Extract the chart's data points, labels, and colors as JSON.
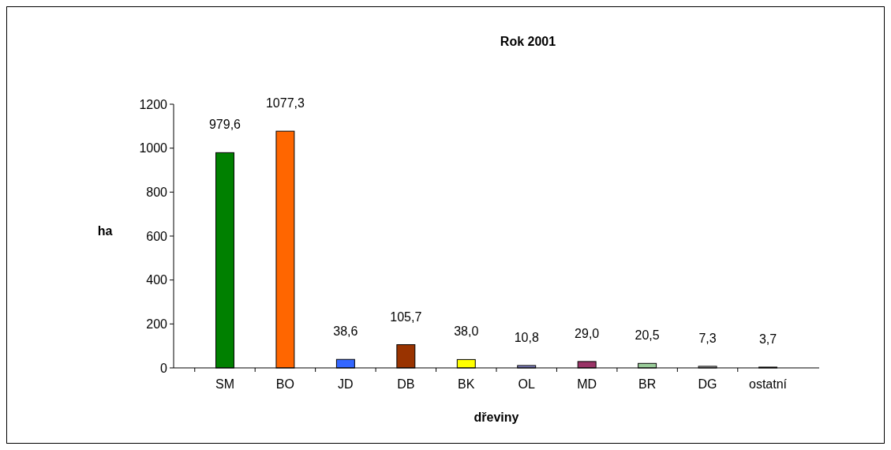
{
  "chart_data": {
    "type": "bar",
    "title": "Rok 2001",
    "xlabel": "dřeviny",
    "ylabel": "ha",
    "categories": [
      "SM",
      "BO",
      "JD",
      "DB",
      "BK",
      "OL",
      "MD",
      "BR",
      "DG",
      "ostatní"
    ],
    "values": [
      979.6,
      1077.3,
      38.6,
      105.7,
      38.0,
      10.8,
      29.0,
      20.5,
      7.3,
      3.7
    ],
    "value_labels": [
      "979,6",
      "1077,3",
      "38,6",
      "105,7",
      "38,0",
      "10,8",
      "29,0",
      "20,5",
      "7,3",
      "3,7"
    ],
    "colors": [
      "#008000",
      "#ff6600",
      "#3366ff",
      "#993300",
      "#ffff00",
      "#8080c0",
      "#993366",
      "#99cc99",
      "#c0c0c0",
      "#c8a078"
    ],
    "ylim": [
      0,
      1200
    ],
    "yticks": [
      0,
      200,
      400,
      600,
      800,
      1000,
      1200
    ],
    "grid": false
  }
}
